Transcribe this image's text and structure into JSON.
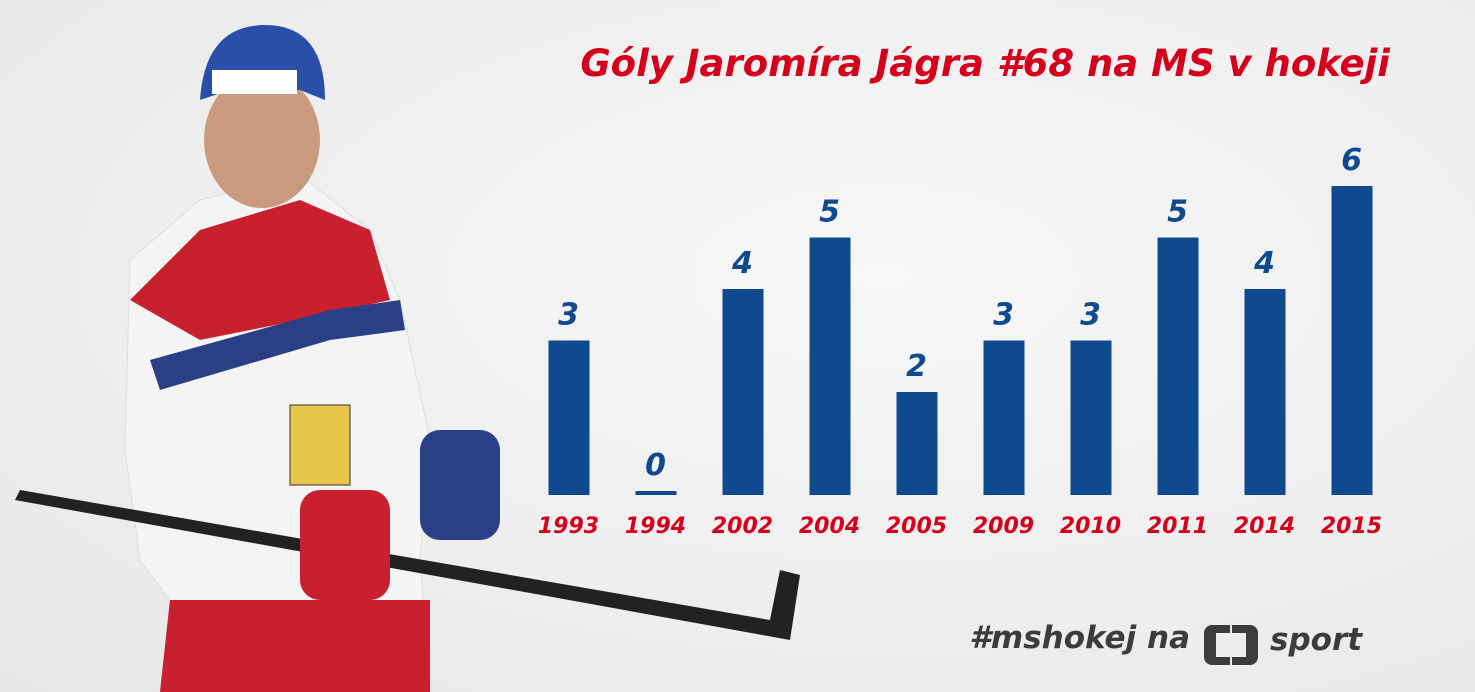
{
  "chart_data": {
    "type": "bar",
    "title": "Góly Jaromíra Jágra #68 na MS v hokeji",
    "categories": [
      "1993",
      "1994",
      "2002",
      "2004",
      "2005",
      "2009",
      "2010",
      "2011",
      "2014",
      "2015"
    ],
    "values": [
      3,
      0,
      4,
      5,
      2,
      3,
      3,
      5,
      4,
      6
    ],
    "color": "#0f4a8f",
    "label_color": "#0f4a8f",
    "category_color": "#d5001c",
    "title_color": "#d5001c",
    "footer": "#mshokej na",
    "logo_text": "sport"
  }
}
